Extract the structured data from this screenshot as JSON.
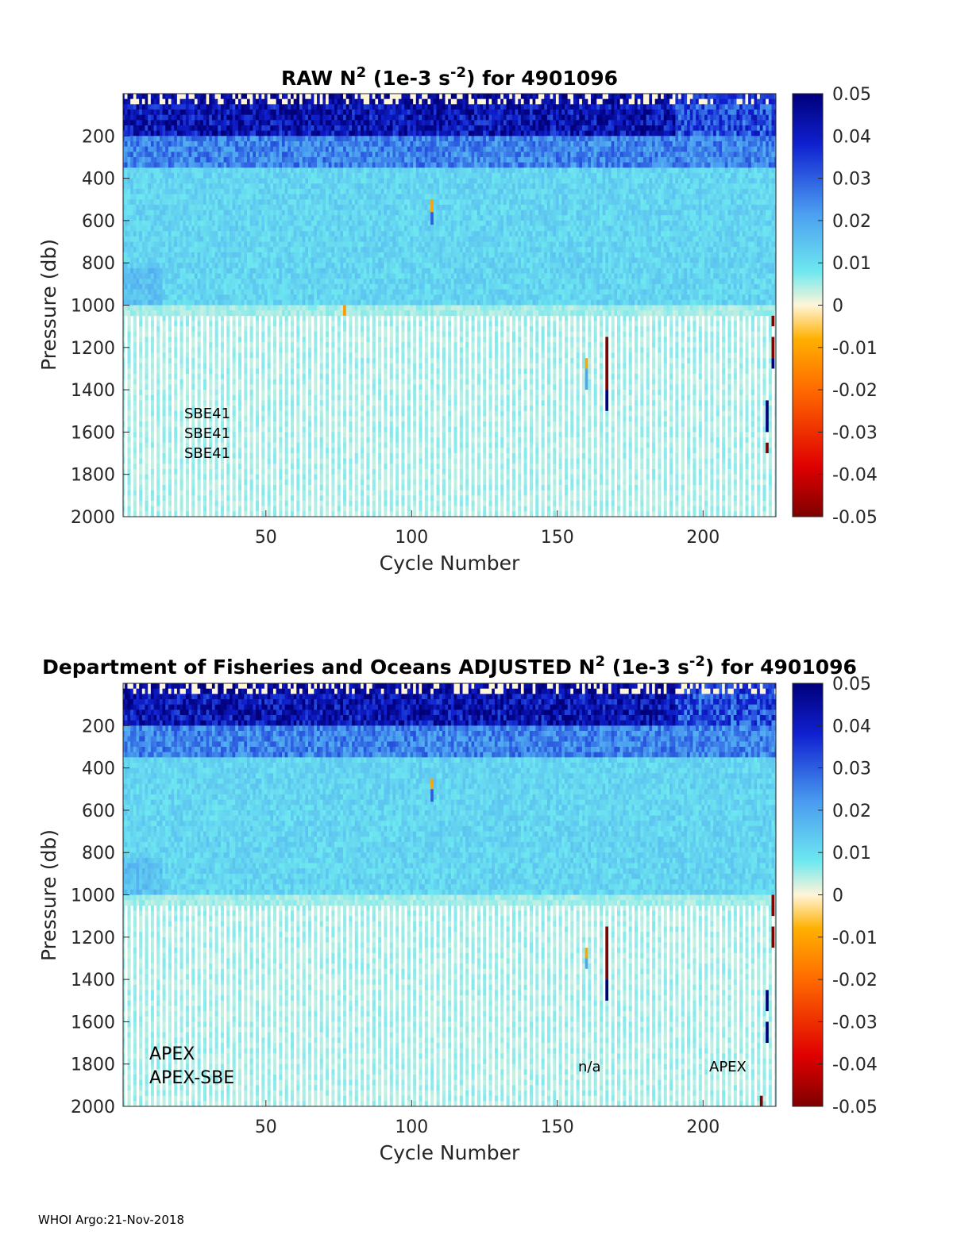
{
  "chart_data": [
    {
      "type": "heatmap",
      "title": "RAW N",
      "title_sup1": "2",
      "title_mid": " (1e-3 s",
      "title_sup2": "-2",
      "title_end": ") for 4901096",
      "xlabel": "Cycle Number",
      "ylabel": "Pressure (db)",
      "xlim": [
        1,
        225
      ],
      "ylim": [
        2000,
        0
      ],
      "xticks": [
        "50",
        "100",
        "150",
        "200"
      ],
      "xtick_values": [
        50,
        100,
        150,
        200
      ],
      "yticks": [
        "200",
        "400",
        "600",
        "800",
        "1000",
        "1200",
        "1400",
        "1600",
        "1800",
        "2000"
      ],
      "ytick_values": [
        200,
        400,
        600,
        800,
        1000,
        1200,
        1400,
        1600,
        1800,
        2000
      ],
      "colorbar": {
        "range": [
          -0.05,
          0.05
        ],
        "ticks": [
          "0.05",
          "0.04",
          "0.03",
          "0.02",
          "0.01",
          "0",
          "-0.01",
          "-0.02",
          "-0.03",
          "-0.04",
          "-0.05"
        ],
        "tick_values": [
          0.05,
          0.04,
          0.03,
          0.02,
          0.01,
          0,
          -0.01,
          -0.02,
          -0.03,
          -0.04,
          -0.05
        ]
      },
      "annotations": [
        "SBE41",
        "SBE41",
        "SBE41"
      ],
      "notable_cells": [
        {
          "cycle": 107,
          "p_from": 500,
          "p_to": 560,
          "value": -0.01
        },
        {
          "cycle": 107,
          "p_from": 560,
          "p_to": 620,
          "value": 0.03
        },
        {
          "cycle": 77,
          "p_from": 1000,
          "p_to": 1050,
          "value": -0.012
        },
        {
          "cycle": 160,
          "p_from": 1250,
          "p_to": 1300,
          "value": -0.01
        },
        {
          "cycle": 160,
          "p_from": 1300,
          "p_to": 1400,
          "value": 0.02
        },
        {
          "cycle": 167,
          "p_from": 1150,
          "p_to": 1400,
          "value": -0.05
        },
        {
          "cycle": 167,
          "p_from": 1400,
          "p_to": 1500,
          "value": 0.05
        },
        {
          "cycle": 224,
          "p_from": 1050,
          "p_to": 1100,
          "value": -0.05
        },
        {
          "cycle": 224,
          "p_from": 1150,
          "p_to": 1250,
          "value": -0.05
        },
        {
          "cycle": 224,
          "p_from": 1250,
          "p_to": 1300,
          "value": 0.05
        },
        {
          "cycle": 222,
          "p_from": 1450,
          "p_to": 1600,
          "value": 0.05
        },
        {
          "cycle": 222,
          "p_from": 1650,
          "p_to": 1700,
          "value": -0.05
        }
      ]
    },
    {
      "type": "heatmap",
      "title": "Department of Fisheries and Oceans  ADJUSTED N",
      "title_sup1": "2",
      "title_mid": " (1e-3 s",
      "title_sup2": "-2",
      "title_end": ") for 4901096",
      "xlabel": "Cycle Number",
      "ylabel": "Pressure (db)",
      "xlim": [
        1,
        225
      ],
      "ylim": [
        2000,
        0
      ],
      "xticks": [
        "50",
        "100",
        "150",
        "200"
      ],
      "xtick_values": [
        50,
        100,
        150,
        200
      ],
      "yticks": [
        "200",
        "400",
        "600",
        "800",
        "1000",
        "1200",
        "1400",
        "1600",
        "1800",
        "2000"
      ],
      "ytick_values": [
        200,
        400,
        600,
        800,
        1000,
        1200,
        1400,
        1600,
        1800,
        2000
      ],
      "colorbar": {
        "range": [
          -0.05,
          0.05
        ],
        "ticks": [
          "0.05",
          "0.04",
          "0.03",
          "0.02",
          "0.01",
          "0",
          "-0.01",
          "-0.02",
          "-0.03",
          "-0.04",
          "-0.05"
        ],
        "tick_values": [
          0.05,
          0.04,
          0.03,
          0.02,
          0.01,
          0,
          -0.01,
          -0.02,
          -0.03,
          -0.04,
          -0.05
        ]
      },
      "annotations": [
        "APEX",
        "APEX-SBE",
        "n/a",
        "APEX"
      ],
      "notable_cells": [
        {
          "cycle": 107,
          "p_from": 450,
          "p_to": 500,
          "value": -0.01
        },
        {
          "cycle": 107,
          "p_from": 500,
          "p_to": 560,
          "value": 0.03
        },
        {
          "cycle": 160,
          "p_from": 1250,
          "p_to": 1300,
          "value": -0.01
        },
        {
          "cycle": 160,
          "p_from": 1300,
          "p_to": 1350,
          "value": 0.02
        },
        {
          "cycle": 167,
          "p_from": 1150,
          "p_to": 1400,
          "value": -0.05
        },
        {
          "cycle": 167,
          "p_from": 1400,
          "p_to": 1500,
          "value": 0.05
        },
        {
          "cycle": 224,
          "p_from": 1000,
          "p_to": 1100,
          "value": -0.05
        },
        {
          "cycle": 224,
          "p_from": 1150,
          "p_to": 1250,
          "value": -0.05
        },
        {
          "cycle": 222,
          "p_from": 1450,
          "p_to": 1550,
          "value": 0.05
        },
        {
          "cycle": 222,
          "p_from": 1600,
          "p_to": 1700,
          "value": 0.05
        },
        {
          "cycle": 220,
          "p_from": 1950,
          "p_to": 2000,
          "value": -0.05
        }
      ]
    }
  ],
  "footer": "WHOI Argo:21-Nov-2018"
}
